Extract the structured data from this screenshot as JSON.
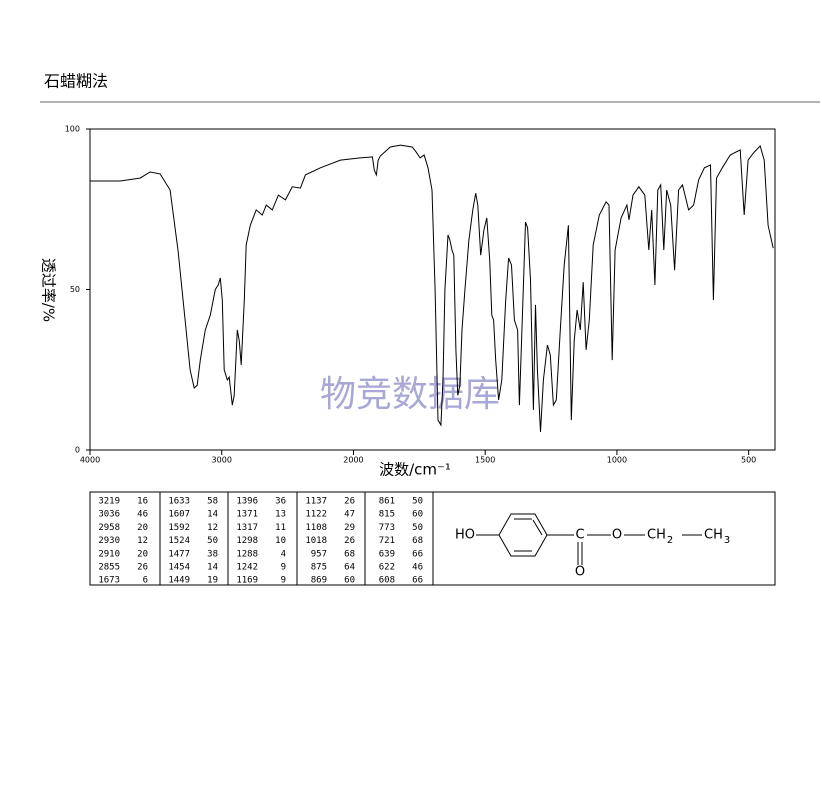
{
  "header": {
    "title": "石蜡糊法"
  },
  "chart_data": {
    "type": "line",
    "color": "#000000",
    "xscale": "piecewise",
    "xlabel": "波数/cm⁻¹",
    "ylabel": "透过率/%",
    "xlim": [
      4000,
      400
    ],
    "xticks": [
      4000,
      3000,
      2000,
      1500,
      1000,
      500
    ],
    "ylim": [
      0,
      100
    ],
    "yticks": [
      0,
      50,
      100
    ],
    "x": [
      4000,
      3772,
      3620,
      3544,
      3468,
      3392,
      3331,
      3278,
      3240,
      3209,
      3186,
      3163,
      3125,
      3087,
      3049,
      3027,
      3011,
      2996,
      2981,
      2958,
      2943,
      2920,
      2905,
      2882,
      2867,
      2852,
      2829,
      2814,
      2783,
      2738,
      2692,
      2662,
      2616,
      2570,
      2517,
      2464,
      2403,
      2365,
      2251,
      2099,
      1974,
      1928,
      1921,
      1913,
      1906,
      1898,
      1860,
      1822,
      1777,
      1762,
      1747,
      1732,
      1717,
      1702,
      1690,
      1679,
      1668,
      1660,
      1653,
      1641,
      1634,
      1626,
      1619,
      1611,
      1604,
      1596,
      1588,
      1577,
      1562,
      1547,
      1536,
      1528,
      1517,
      1505,
      1494,
      1483,
      1475,
      1468,
      1460,
      1449,
      1437,
      1422,
      1411,
      1400,
      1389,
      1377,
      1370,
      1358,
      1347,
      1339,
      1328,
      1317,
      1309,
      1302,
      1290,
      1279,
      1264,
      1253,
      1241,
      1230,
      1215,
      1200,
      1184,
      1173,
      1162,
      1151,
      1139,
      1128,
      1117,
      1105,
      1090,
      1067,
      1041,
      1030,
      1018,
      1007,
      984,
      962,
      954,
      939,
      917,
      894,
      879,
      868,
      856,
      845,
      834,
      822,
      811,
      796,
      781,
      766,
      751,
      728,
      709,
      690,
      668,
      645,
      634,
      622,
      600,
      570,
      532,
      517,
      502,
      479,
      456,
      441,
      426,
      407
    ],
    "values": [
      83.8,
      83.8,
      84.7,
      86.6,
      86,
      81,
      62,
      40.5,
      25,
      19.3,
      20.2,
      28,
      37.4,
      42,
      50,
      51.4,
      53.6,
      46.7,
      25,
      21.8,
      22.7,
      14,
      17,
      37.4,
      34,
      26.5,
      46.7,
      63.9,
      70,
      74.8,
      73.2,
      76.3,
      74.8,
      79.4,
      77.9,
      82,
      81.6,
      85.7,
      87.9,
      90.3,
      91,
      91.3,
      87.2,
      85.7,
      90.3,
      91.6,
      94.4,
      95,
      94.4,
      92.8,
      91,
      91.9,
      87.9,
      81,
      49.8,
      9.3,
      7.8,
      21.8,
      49.8,
      67,
      65.4,
      62.3,
      60.7,
      31.2,
      17,
      20.2,
      37.4,
      49.8,
      65.4,
      74.8,
      80,
      76.3,
      60.7,
      68.5,
      72.3,
      59.2,
      42,
      40.5,
      28,
      15.6,
      21.8,
      46.7,
      59.8,
      57.6,
      40.5,
      37.4,
      14,
      43.6,
      71,
      69.2,
      53,
      12.5,
      45.2,
      25,
      5.6,
      21.8,
      32.7,
      29.6,
      14,
      15.6,
      37.4,
      57.6,
      70,
      9.3,
      34,
      43.6,
      37.4,
      52.3,
      31.2,
      40.5,
      63.9,
      73.2,
      77.3,
      76.3,
      28,
      62.3,
      72.3,
      76.3,
      71.7,
      79.4,
      82,
      79.4,
      62.3,
      74.8,
      51.4,
      81,
      82.6,
      62.3,
      81,
      76.3,
      56,
      81,
      82.6,
      74.8,
      76.3,
      84.1,
      87.9,
      88.8,
      46.7,
      84.7,
      87.9,
      91.9,
      93.5,
      73.2,
      90.3,
      92.8,
      94.7,
      90.3,
      70,
      62.9
    ]
  },
  "watermark": "物竞数据库",
  "peak_table": {
    "columns": [
      [
        [
          3219,
          16
        ],
        [
          3036,
          46
        ],
        [
          2958,
          20
        ],
        [
          2930,
          12
        ],
        [
          2910,
          20
        ],
        [
          2855,
          26
        ],
        [
          1673,
          6
        ]
      ],
      [
        [
          1633,
          58
        ],
        [
          1607,
          14
        ],
        [
          1592,
          12
        ],
        [
          1524,
          50
        ],
        [
          1477,
          38
        ],
        [
          1454,
          14
        ],
        [
          1449,
          19
        ]
      ],
      [
        [
          1396,
          36
        ],
        [
          1371,
          13
        ],
        [
          1317,
          11
        ],
        [
          1298,
          10
        ],
        [
          1288,
          4
        ],
        [
          1242,
          9
        ],
        [
          1169,
          9
        ]
      ],
      [
        [
          1137,
          26
        ],
        [
          1122,
          47
        ],
        [
          1108,
          29
        ],
        [
          1018,
          26
        ],
        [
          957,
          68
        ],
        [
          875,
          64
        ],
        [
          869,
          60
        ]
      ],
      [
        [
          861,
          50
        ],
        [
          815,
          60
        ],
        [
          773,
          50
        ],
        [
          721,
          68
        ],
        [
          639,
          66
        ],
        [
          622,
          46
        ],
        [
          608,
          66
        ]
      ]
    ]
  },
  "structure": {
    "labels": [
      "HO",
      "C",
      "O",
      "O",
      "CH",
      "2",
      "CH",
      "3"
    ]
  }
}
